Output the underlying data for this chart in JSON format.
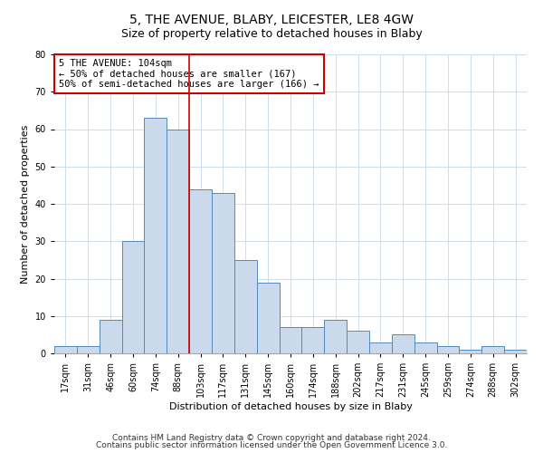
{
  "title": "5, THE AVENUE, BLABY, LEICESTER, LE8 4GW",
  "subtitle": "Size of property relative to detached houses in Blaby",
  "xlabel": "Distribution of detached houses by size in Blaby",
  "ylabel": "Number of detached properties",
  "categories": [
    "17sqm",
    "31sqm",
    "46sqm",
    "60sqm",
    "74sqm",
    "88sqm",
    "103sqm",
    "117sqm",
    "131sqm",
    "145sqm",
    "160sqm",
    "174sqm",
    "188sqm",
    "202sqm",
    "217sqm",
    "231sqm",
    "245sqm",
    "259sqm",
    "274sqm",
    "288sqm",
    "302sqm"
  ],
  "values": [
    2,
    2,
    9,
    30,
    63,
    60,
    44,
    43,
    25,
    19,
    7,
    7,
    9,
    6,
    3,
    5,
    3,
    2,
    1,
    2,
    1
  ],
  "bar_color": "#cad9ec",
  "bar_edge_color": "#5588bb",
  "red_line_x": 5.5,
  "annotation_line1": "5 THE AVENUE: 104sqm",
  "annotation_line2": "← 50% of detached houses are smaller (167)",
  "annotation_line3": "50% of semi-detached houses are larger (166) →",
  "annotation_box_color": "#ffffff",
  "annotation_box_edge": "#cc0000",
  "red_line_color": "#cc0000",
  "footer_line1": "Contains HM Land Registry data © Crown copyright and database right 2024.",
  "footer_line2": "Contains public sector information licensed under the Open Government Licence 3.0.",
  "ylim": [
    0,
    80
  ],
  "yticks": [
    0,
    10,
    20,
    30,
    40,
    50,
    60,
    70,
    80
  ],
  "title_fontsize": 10,
  "subtitle_fontsize": 9,
  "xlabel_fontsize": 8,
  "ylabel_fontsize": 8,
  "tick_fontsize": 7,
  "footer_fontsize": 6.5,
  "annotation_fontsize": 7.5
}
